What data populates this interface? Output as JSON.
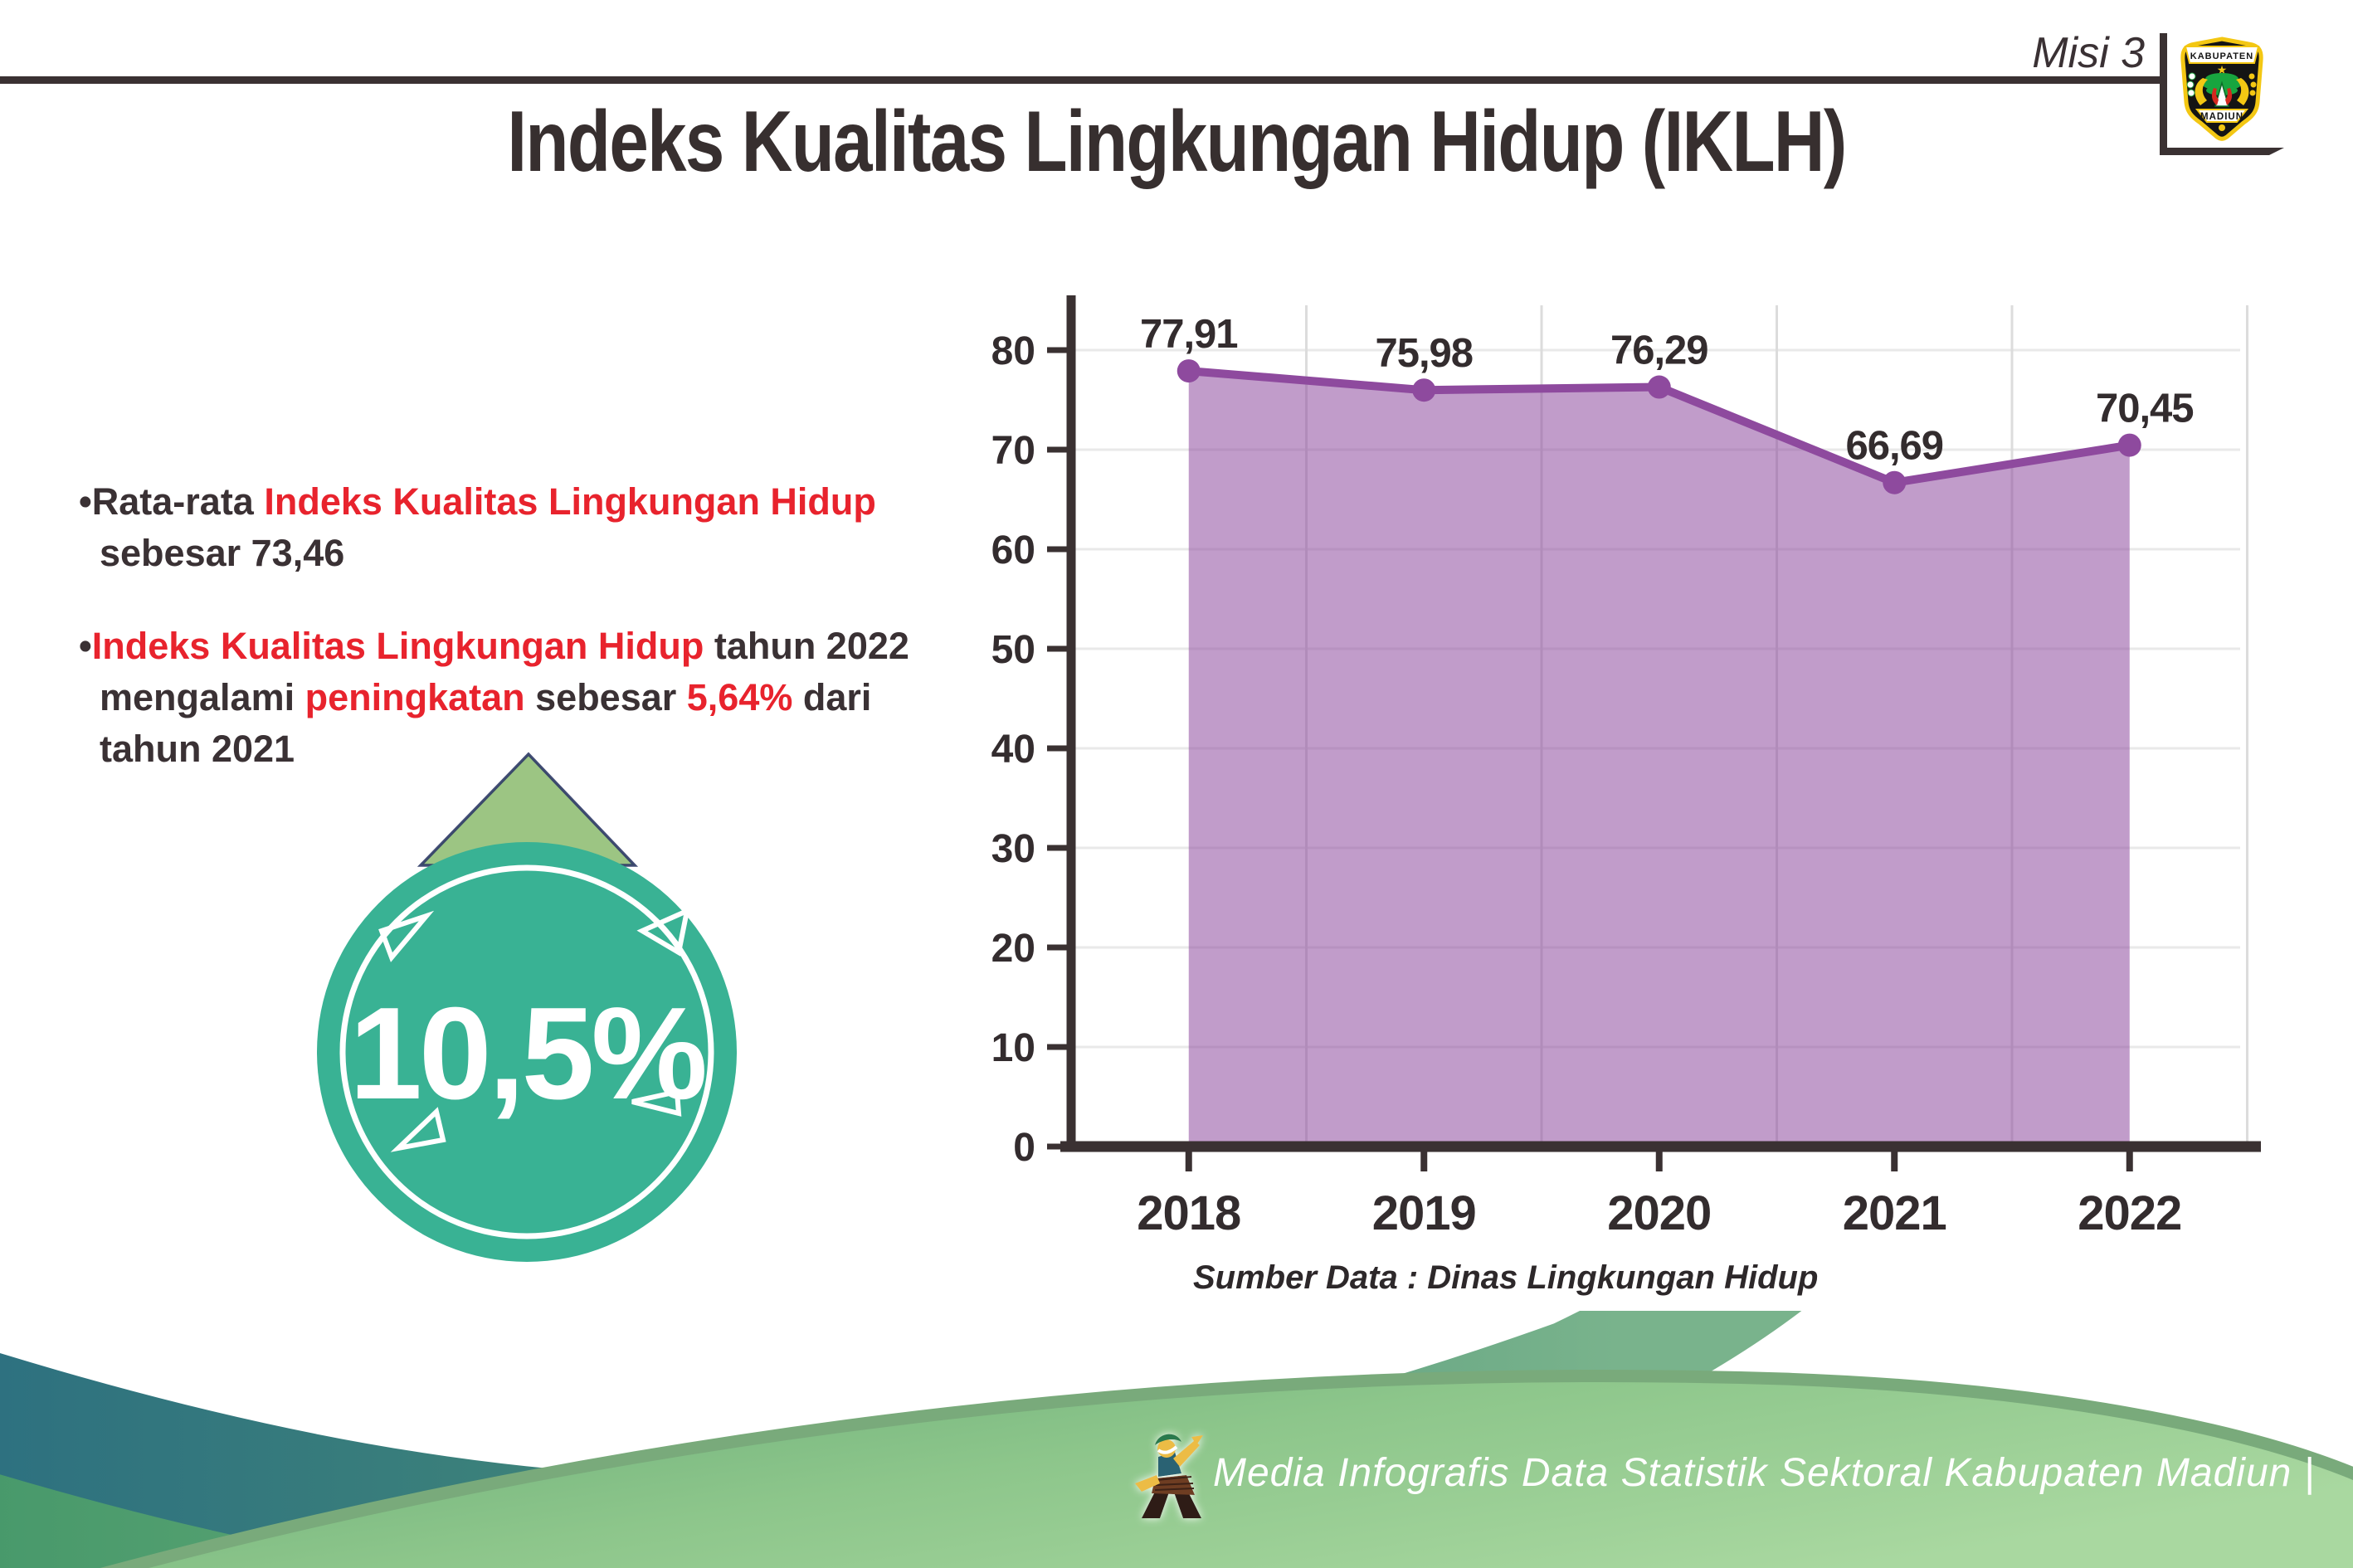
{
  "header": {
    "misi_label": "Misi 3",
    "title": "Indeks Kualitas Lingkungan Hidup (IKLH)",
    "logo_top": "KABUPATEN",
    "logo_bottom": "MADIUN"
  },
  "bullets": [
    {
      "marker": "•",
      "lines": [
        [
          {
            "t": "Rata-rata ",
            "c": "dark"
          },
          {
            "t": "Indeks Kualitas Lingkungan Hidup",
            "c": "red"
          }
        ],
        [
          {
            "t": "sebesar 73,46",
            "c": "dark"
          }
        ]
      ]
    },
    {
      "marker": "•",
      "lines": [
        [
          {
            "t": "Indeks Kualitas Lingkungan Hidup",
            "c": "red"
          },
          {
            "t": " tahun 2022",
            "c": "dark"
          }
        ],
        [
          {
            "t": "mengalami ",
            "c": "dark"
          },
          {
            "t": "peningkatan",
            "c": "red"
          },
          {
            "t": " sebesar ",
            "c": "dark"
          },
          {
            "t": "5,64%",
            "c": "red"
          },
          {
            "t": " dari",
            "c": "dark"
          }
        ],
        [
          {
            "t": "tahun 2021",
            "c": "dark"
          }
        ]
      ]
    }
  ],
  "badge": {
    "value": "10,5%"
  },
  "chart_data": {
    "type": "area",
    "categories": [
      "2018",
      "2019",
      "2020",
      "2021",
      "2022"
    ],
    "values": [
      77.91,
      75.98,
      76.29,
      66.69,
      70.45
    ],
    "point_labels": [
      "77,91",
      "75,98",
      "76,29",
      "66,69",
      "70,45"
    ],
    "title": "",
    "xlabel": "",
    "ylabel": "",
    "ylim": [
      0,
      85
    ],
    "yticks": [
      0,
      10,
      20,
      30,
      40,
      50,
      60,
      70,
      80
    ],
    "grid": true,
    "legend": false,
    "source_caption": "Sumber Data : Dinas Lingkungan Hidup"
  },
  "footer": {
    "text": "Media Infografis Data Statistik Sektoral Kabupaten Madiun |"
  },
  "colors": {
    "text_dark": "#3a3134",
    "accent_red": "#e8232d",
    "chart_purple": "#8e4a9e",
    "axis_dark": "#3a3132",
    "grid_light": "#e3e3e3",
    "badge_teal": "#39b294",
    "arrow_green": "#9cc583",
    "arrow_outline": "#2d3a66",
    "footer_teal": "#2d7080",
    "footer_green": "#8dc68b"
  }
}
